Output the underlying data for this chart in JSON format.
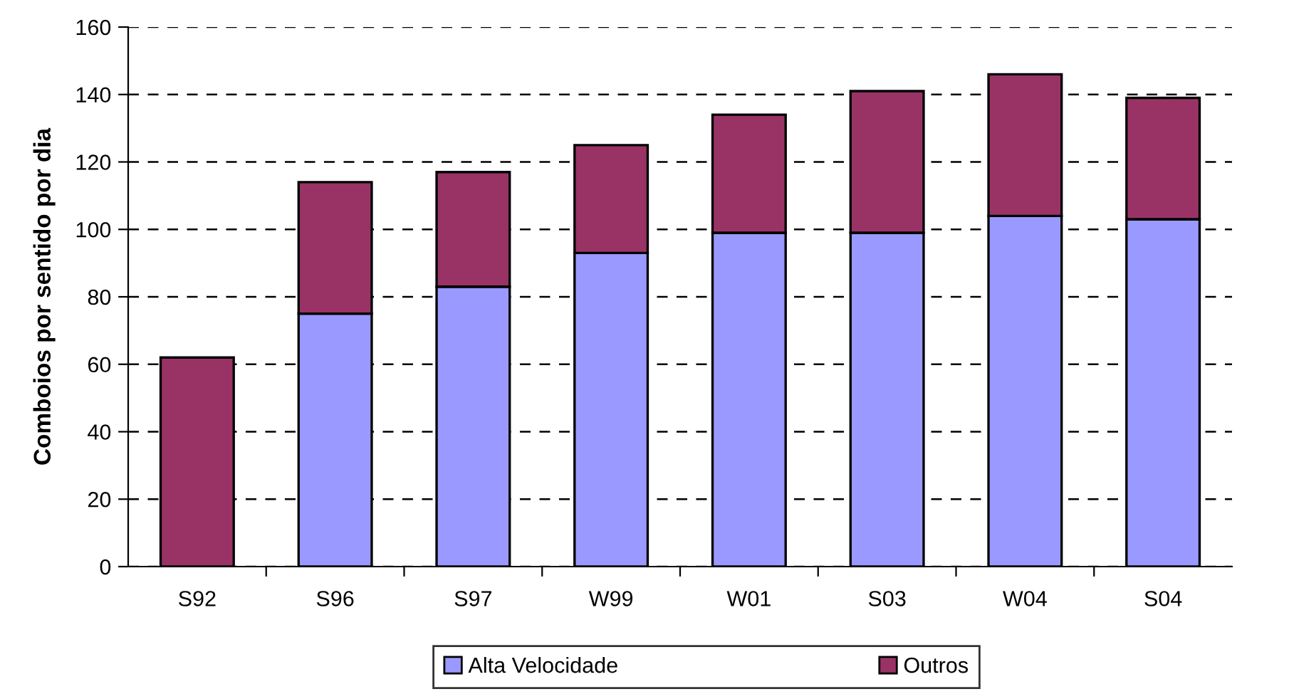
{
  "chart_data": {
    "type": "bar",
    "stacked": true,
    "ylabel": "Comboios por sentido por dia",
    "categories": [
      "S92",
      "S96",
      "S97",
      "W99",
      "W01",
      "S03",
      "W04",
      "S04"
    ],
    "series": [
      {
        "name": "Alta Velocidade",
        "color": "#9999ff",
        "values": [
          0,
          75,
          83,
          93,
          99,
          99,
          104,
          103
        ]
      },
      {
        "name": "Outros",
        "color": "#993366",
        "values": [
          62,
          39,
          34,
          32,
          35,
          42,
          42,
          36
        ]
      }
    ],
    "ylim": [
      0,
      160
    ],
    "yticks": [
      0,
      20,
      40,
      60,
      80,
      100,
      120,
      140,
      160
    ],
    "grid": "y",
    "legend": "bottom"
  }
}
